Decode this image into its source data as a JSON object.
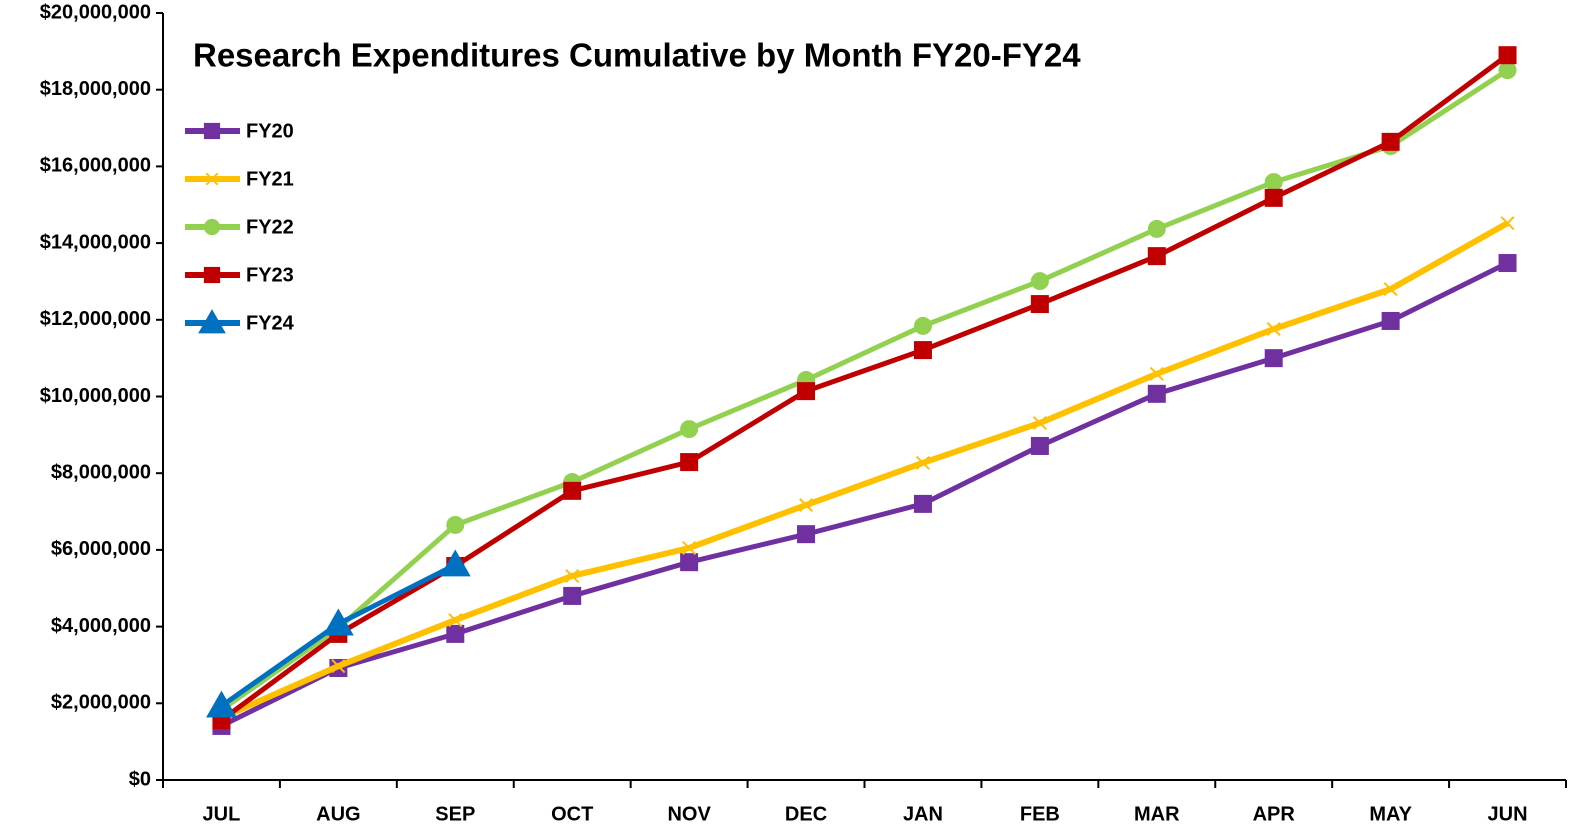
{
  "chart_data": {
    "type": "line",
    "title": "Research Expenditures Cumulative by Month FY20-FY24",
    "categories": [
      "JUL",
      "AUG",
      "SEP",
      "OCT",
      "NOV",
      "DEC",
      "JAN",
      "FEB",
      "MAR",
      "APR",
      "MAY",
      "JUN"
    ],
    "series": [
      {
        "name": "FY20",
        "color": "#7030a0",
        "marker": "square",
        "values": [
          1410000,
          2920000,
          3810000,
          4800000,
          5680000,
          6410000,
          7200000,
          8710000,
          10070000,
          11000000,
          11970000,
          13480000
        ]
      },
      {
        "name": "FY21",
        "color": "#ffc000",
        "marker": "x",
        "values": [
          1620000,
          2970000,
          4170000,
          5320000,
          6050000,
          7170000,
          8270000,
          9310000,
          10590000,
          11760000,
          12800000,
          14520000
        ]
      },
      {
        "name": "FY22",
        "color": "#92d050",
        "marker": "circle",
        "values": [
          1830000,
          3960000,
          6650000,
          7770000,
          9150000,
          10430000,
          11840000,
          13010000,
          14370000,
          15590000,
          16530000,
          18510000
        ]
      },
      {
        "name": "FY23",
        "color": "#c00000",
        "marker": "square",
        "values": [
          1560000,
          3810000,
          5580000,
          7540000,
          8290000,
          10140000,
          11210000,
          12410000,
          13660000,
          15180000,
          16640000,
          18900000
        ]
      },
      {
        "name": "FY24",
        "color": "#0070c0",
        "marker": "triangle",
        "values": [
          1930000,
          4070000,
          5610000,
          null,
          null,
          null,
          null,
          null,
          null,
          null,
          null,
          null
        ]
      }
    ],
    "ylim": [
      0,
      20000000
    ],
    "yticks": [
      {
        "value": 0,
        "label": "$0"
      },
      {
        "value": 2000000,
        "label": "$2,000,000"
      },
      {
        "value": 4000000,
        "label": "$4,000,000"
      },
      {
        "value": 6000000,
        "label": "$6,000,000"
      },
      {
        "value": 8000000,
        "label": "$8,000,000"
      },
      {
        "value": 10000000,
        "label": "$10,000,000"
      },
      {
        "value": 12000000,
        "label": "$12,000,000"
      },
      {
        "value": 14000000,
        "label": "$14,000,000"
      },
      {
        "value": 16000000,
        "label": "$16,000,000"
      },
      {
        "value": 18000000,
        "label": "$18,000,000"
      },
      {
        "value": 20000000,
        "label": "$20,000,000"
      }
    ],
    "grid": false,
    "legend": "upper left"
  }
}
